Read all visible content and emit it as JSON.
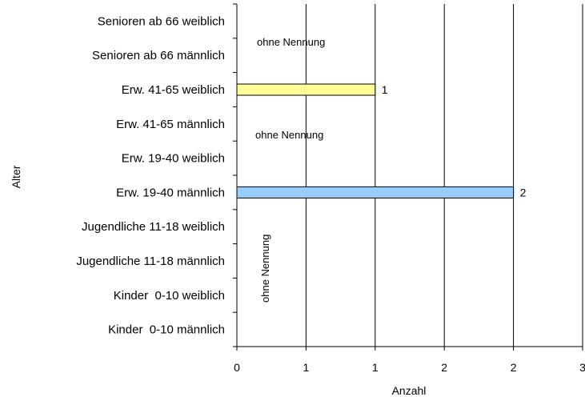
{
  "chart_data": {
    "type": "bar",
    "orientation": "horizontal",
    "categories": [
      "Senioren ab 66 weiblich",
      "Senioren ab 66 männlich",
      "Erw. 41-65 weiblich",
      "Erw. 41-65 männlich",
      "Erw. 19-40 weiblich",
      "Erw. 19-40 männlich",
      "Jugendliche 11-18 weiblich",
      "Jugendliche 11-18 männlich",
      "Kinder  0-10 weiblich",
      "Kinder  0-10 männlich"
    ],
    "values": [
      null,
      null,
      1,
      null,
      null,
      2,
      null,
      null,
      null,
      null
    ],
    "bar_colors": [
      null,
      null,
      "#ffff99",
      null,
      null,
      "#99ccff",
      null,
      null,
      null,
      null
    ],
    "data_labels": [
      "",
      "",
      "1",
      "",
      "",
      "2",
      "",
      "",
      "",
      ""
    ],
    "xlabel": "Anzahl",
    "ylabel": "Alter",
    "xlim": [
      0,
      2
    ],
    "x_tick_labels": [
      "0",
      "1",
      "1",
      "2",
      "2",
      "3"
    ],
    "grid": "vertical",
    "annotations": [
      {
        "text": "ohne Nennung",
        "near_category": "Senioren ab 66 weiblich",
        "rotation": 0
      },
      {
        "text": "ohne Nennung",
        "near_category": "Erw. 41-65 männlich",
        "rotation": 0
      },
      {
        "text": "ohne Nennung",
        "near_category": "Jugendliche 11-18 männlich",
        "rotation": -90
      }
    ]
  }
}
